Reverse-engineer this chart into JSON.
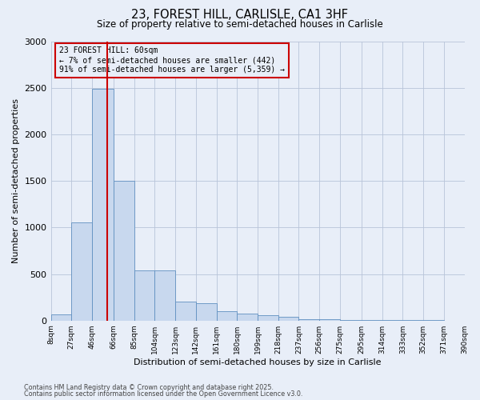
{
  "title1": "23, FOREST HILL, CARLISLE, CA1 3HF",
  "title2": "Size of property relative to semi-detached houses in Carlisle",
  "xlabel": "Distribution of semi-detached houses by size in Carlisle",
  "ylabel": "Number of semi-detached properties",
  "footnote1": "Contains HM Land Registry data © Crown copyright and database right 2025.",
  "footnote2": "Contains public sector information licensed under the Open Government Licence v3.0.",
  "annotation_title": "23 FOREST HILL: 60sqm",
  "annotation_line1": "← 7% of semi-detached houses are smaller (442)",
  "annotation_line2": "91% of semi-detached houses are larger (5,359) →",
  "property_size": 60,
  "bin_edges": [
    8,
    27,
    46,
    66,
    85,
    104,
    123,
    142,
    161,
    180,
    199,
    218,
    237,
    256,
    275,
    295,
    314,
    333,
    352,
    371,
    390
  ],
  "bar_heights": [
    70,
    1050,
    2490,
    1500,
    540,
    540,
    200,
    190,
    100,
    75,
    55,
    40,
    15,
    15,
    10,
    5,
    3,
    2,
    2,
    1
  ],
  "bar_color": "#c8d8ee",
  "bar_edge_color": "#6090c0",
  "vline_color": "#cc0000",
  "ylim": [
    0,
    3000
  ],
  "yticks": [
    0,
    500,
    1000,
    1500,
    2000,
    2500,
    3000
  ],
  "bg_color": "#e8eef8",
  "annotation_box_color": "#cc0000",
  "grid_color": "#b8c4d8"
}
